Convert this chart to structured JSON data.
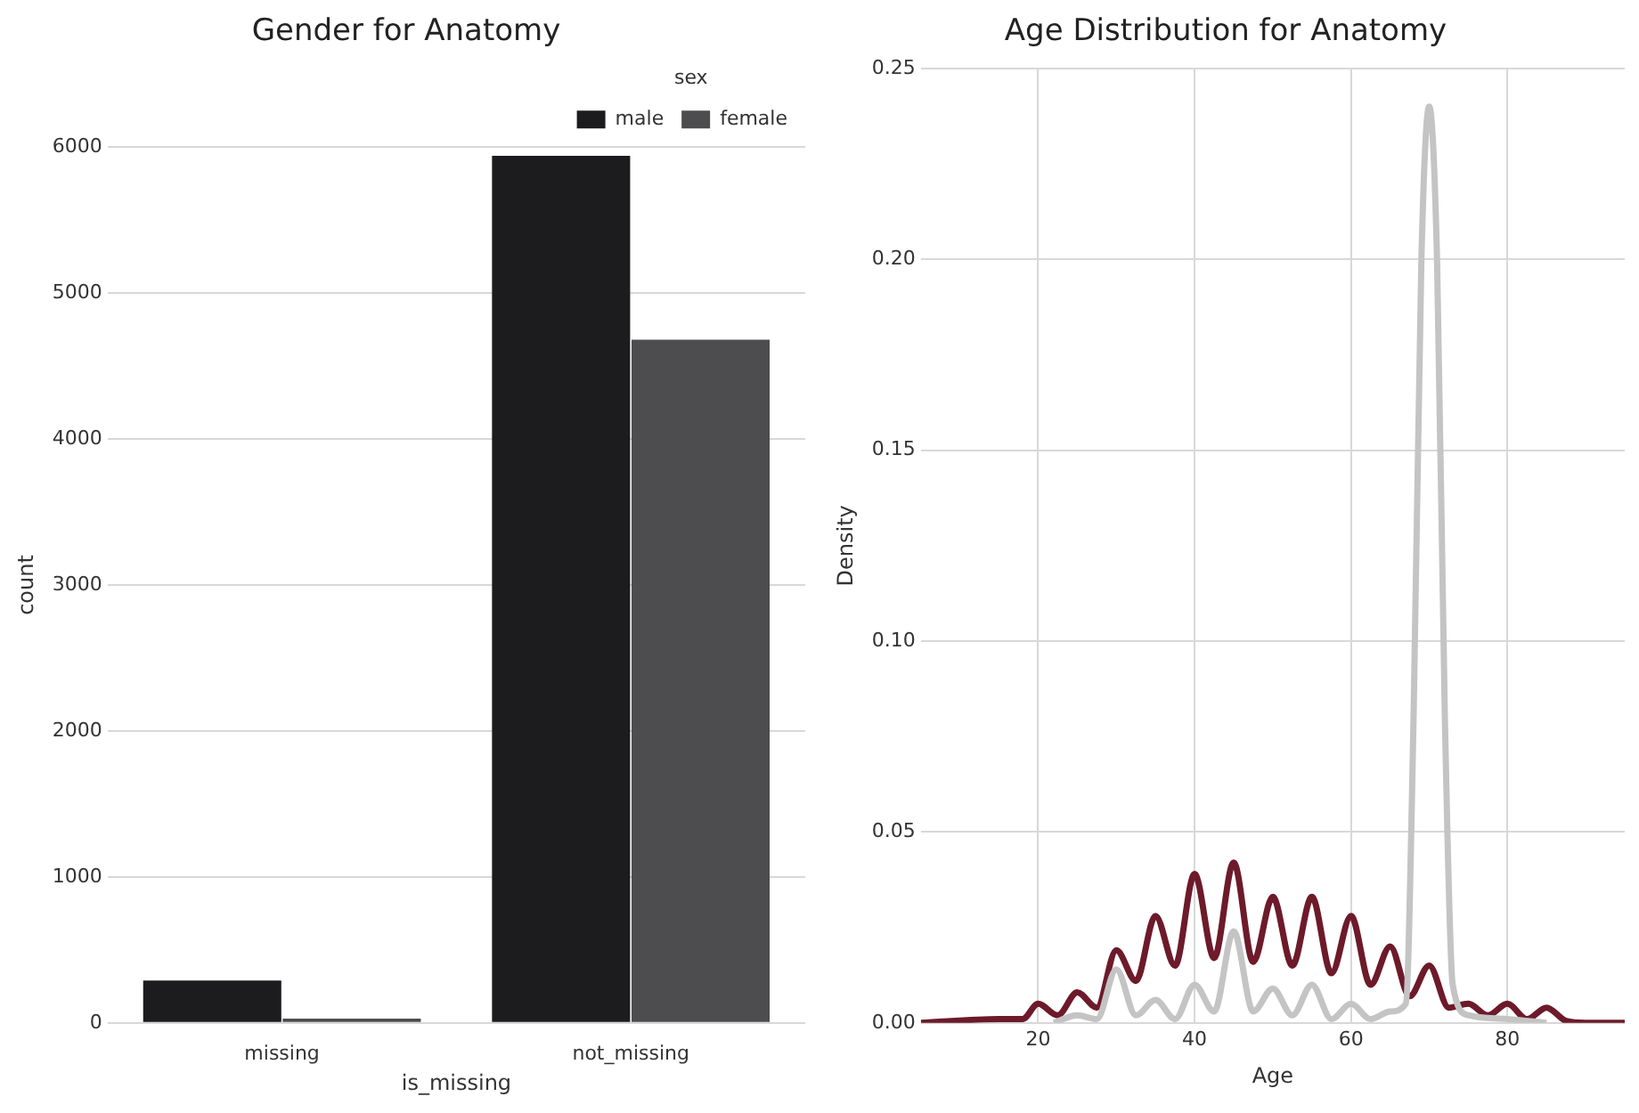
{
  "chart_data": [
    {
      "type": "bar",
      "title": "Gender for Anatomy",
      "xlabel": "is_missing",
      "ylabel": "count",
      "legend_title": "sex",
      "categories": [
        "missing",
        "not_missing"
      ],
      "series": [
        {
          "name": "male",
          "color": "#1c1c1e",
          "values": [
            290,
            5940
          ]
        },
        {
          "name": "female",
          "color": "#4d4d4f",
          "values": [
            30,
            4680
          ]
        }
      ],
      "ylim": [
        0,
        6000
      ],
      "yticks": [
        0,
        1000,
        2000,
        3000,
        4000,
        5000,
        6000
      ],
      "grid": "y",
      "legend": "top right"
    },
    {
      "type": "line",
      "title": "Age Distribution for Anatomy",
      "xlabel": "Age",
      "ylabel": "Density",
      "xlim": [
        5,
        95
      ],
      "xticks": [
        20,
        40,
        60,
        80
      ],
      "ylim": [
        0,
        0.25
      ],
      "yticks": [
        {
          "value": 0,
          "label": "0.00"
        },
        {
          "value": 0.05,
          "label": "0.05"
        },
        {
          "value": 0.1,
          "label": "0.10"
        },
        {
          "value": 0.15,
          "label": "0.15"
        },
        {
          "value": 0.2,
          "label": "0.20"
        },
        {
          "value": 0.25,
          "label": "0.25"
        }
      ],
      "grid": true,
      "marker": "none",
      "series": [
        {
          "color": "#c4c4c4",
          "x": [
            22,
            25,
            27.5,
            30,
            32.5,
            35,
            37.5,
            40,
            42.5,
            45,
            47.5,
            50,
            52.5,
            55,
            57.5,
            60,
            62.5,
            65,
            67,
            68,
            69,
            70,
            71,
            72,
            73,
            75,
            80,
            85
          ],
          "values": [
            0,
            0.002,
            0.001,
            0.014,
            0.002,
            0.006,
            0.001,
            0.01,
            0.003,
            0.024,
            0.003,
            0.009,
            0.002,
            0.01,
            0.001,
            0.005,
            0.001,
            0.003,
            0.005,
            0.08,
            0.2,
            0.24,
            0.2,
            0.08,
            0.01,
            0.002,
            0.001,
            0
          ]
        },
        {
          "color": "#6d1a2a",
          "x": [
            5,
            15,
            18,
            20,
            22.5,
            25,
            27.5,
            30,
            32.5,
            35,
            37.5,
            40,
            42.5,
            45,
            47.5,
            50,
            52.5,
            55,
            57.5,
            60,
            62.5,
            65,
            67.5,
            70,
            72.5,
            75,
            77.5,
            80,
            82.5,
            85,
            87.5,
            90,
            95
          ],
          "values": [
            0,
            0.001,
            0.001,
            0.005,
            0.002,
            0.008,
            0.004,
            0.019,
            0.011,
            0.028,
            0.015,
            0.039,
            0.017,
            0.042,
            0.016,
            0.033,
            0.015,
            0.033,
            0.013,
            0.028,
            0.01,
            0.02,
            0.007,
            0.015,
            0.004,
            0.005,
            0.002,
            0.005,
            0.001,
            0.004,
            0.0005,
            0,
            0
          ]
        }
      ]
    }
  ]
}
